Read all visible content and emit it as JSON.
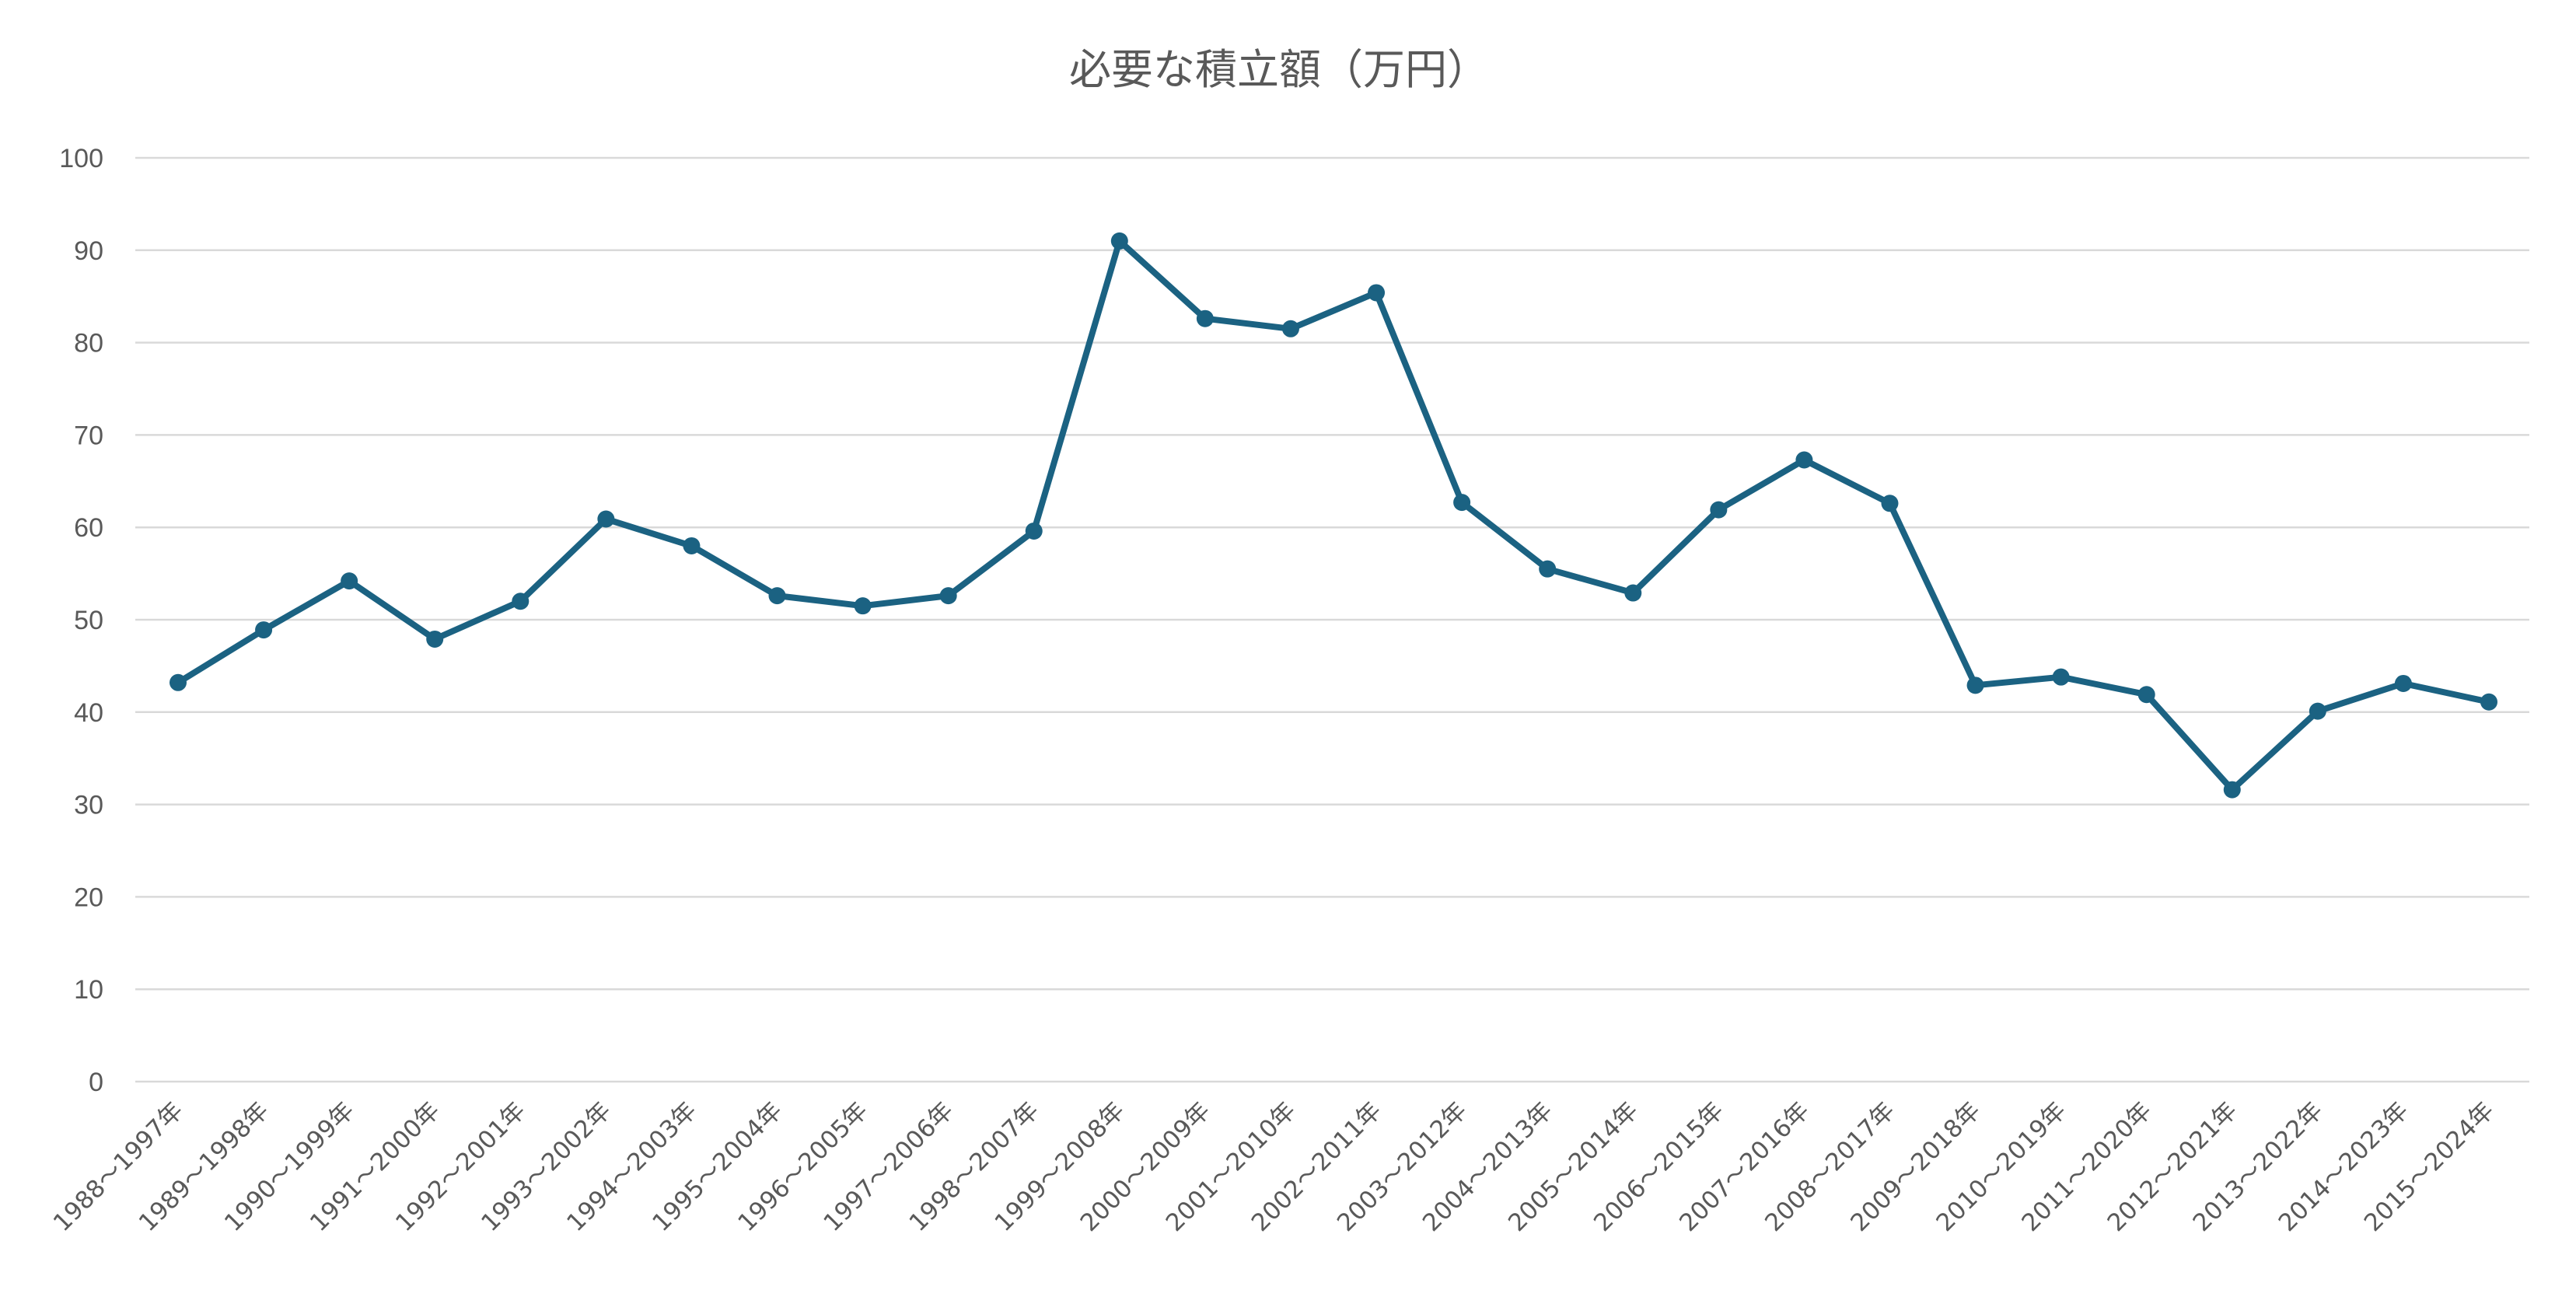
{
  "chart_data": {
    "type": "line",
    "title": "必要な積立額（万円）",
    "xlabel": "",
    "ylabel": "",
    "ylim": [
      0,
      100
    ],
    "yticks": [
      "0",
      "10",
      "20",
      "30",
      "40",
      "50",
      "60",
      "70",
      "80",
      "90",
      "100"
    ],
    "grid": true,
    "legend": "none",
    "categories": [
      "1988～1997年",
      "1989～1998年",
      "1990～1999年",
      "1991～2000年",
      "1992～2001年",
      "1993～2002年",
      "1994～2003年",
      "1995～2004年",
      "1996～2005年",
      "1997～2006年",
      "1998～2007年",
      "1999～2008年",
      "2000～2009年",
      "2001～2010年",
      "2002～2011年",
      "2003～2012年",
      "2004～2013年",
      "2005～2014年",
      "2006～2015年",
      "2007～2016年",
      "2008～2017年",
      "2009～2018年",
      "2010～2019年",
      "2011～2020年",
      "2012～2021年",
      "2013～2022年",
      "2014～2023年",
      "2015～2024年"
    ],
    "series": [
      {
        "color": "#1b6282",
        "values": [
          43.2,
          48.9,
          54.2,
          47.9,
          52.0,
          60.9,
          58.0,
          52.6,
          51.5,
          52.6,
          59.6,
          91.0,
          82.6,
          81.5,
          85.4,
          62.7,
          55.5,
          52.9,
          61.9,
          67.3,
          62.6,
          42.9,
          43.8,
          41.9,
          31.6,
          40.1,
          43.1,
          41.1
        ]
      }
    ]
  }
}
